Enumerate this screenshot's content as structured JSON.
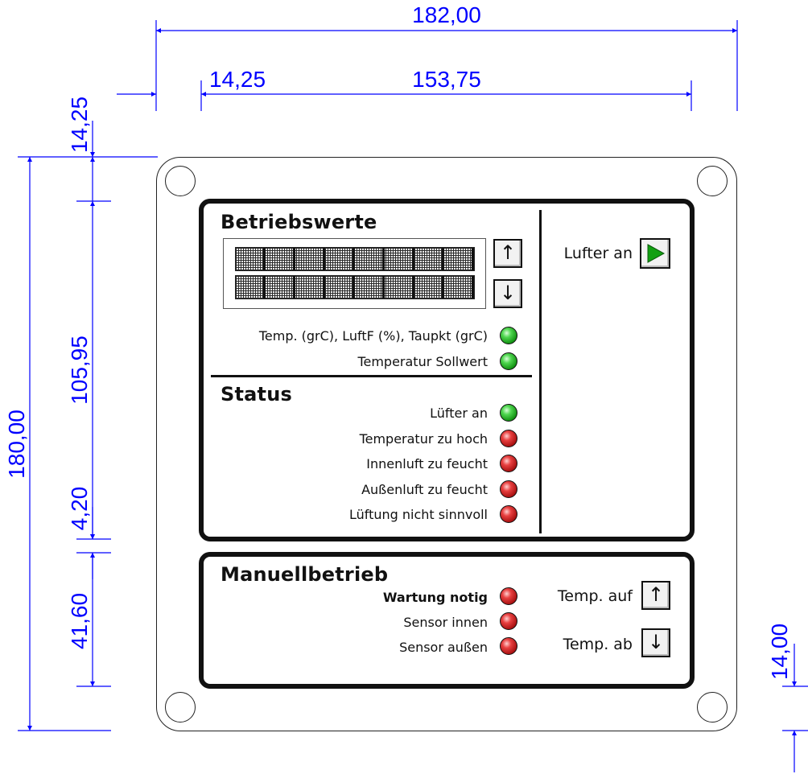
{
  "dimensions": {
    "overall_width": "182,00",
    "left_offset": "14,25",
    "panel_width": "153,75",
    "top_offset": "14,25",
    "overall_height": "180,00",
    "upper_panel_height": "105,95",
    "panel_gap": "4,20",
    "lower_panel_height": "41,60",
    "bottom_offset": "14,00"
  },
  "operating_values": {
    "title": "Betriebswerte",
    "scroll_up_icon": "arrow-up",
    "scroll_down_icon": "arrow-down",
    "leds": [
      {
        "label": "Temp. (grC), LuftF (%), Taupkt (grC)",
        "color": "green"
      },
      {
        "label": "Temperatur Sollwert",
        "color": "green"
      }
    ]
  },
  "status": {
    "title": "Status",
    "leds": [
      {
        "label": "Lüfter an",
        "color": "green"
      },
      {
        "label": "Temperatur zu hoch",
        "color": "red"
      },
      {
        "label": "Innenluft zu feucht",
        "color": "red"
      },
      {
        "label": "Außenluft zu feucht",
        "color": "red"
      },
      {
        "label": "Lüftung nicht sinnvoll",
        "color": "red"
      }
    ]
  },
  "fan_control": {
    "label": "Lufter an",
    "icon": "play-icon",
    "icon_color": "#12a012"
  },
  "manual": {
    "title": "Manuellbetrieb",
    "leds": [
      {
        "label": "Wartung notig",
        "color": "red"
      },
      {
        "label": "Sensor innen",
        "color": "red"
      },
      {
        "label": "Sensor außen",
        "color": "red"
      }
    ],
    "temp_up_label": "Temp. auf",
    "temp_down_label": "Temp. ab"
  },
  "colors": {
    "dimension": "#0000ff",
    "led_green": "#2ecc2e",
    "led_red": "#cc1a1a"
  }
}
